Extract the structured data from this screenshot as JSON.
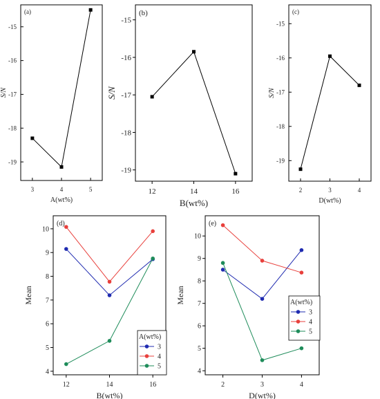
{
  "chart_data": [
    {
      "id": "a",
      "panel_label": "(a)",
      "type": "line",
      "xlabel": "A(wt%)",
      "ylabel": "S/N",
      "x": [
        3,
        4,
        5
      ],
      "series": [
        {
          "values": [
            -18.3,
            -19.15,
            -14.5
          ],
          "color": "#000000",
          "marker": "square"
        }
      ],
      "xlim": [
        2.6,
        5.4
      ],
      "ylim": [
        -19.55,
        -14.35
      ],
      "xticks": [
        3,
        4,
        5
      ],
      "yticks": [
        -19,
        -18,
        -17,
        -16,
        -15
      ],
      "xtick_labels": [
        "3",
        "4",
        "5"
      ],
      "ytick_labels": [
        "-19",
        "-18",
        "-17",
        "-16",
        "-15"
      ],
      "grid": false,
      "legend": null
    },
    {
      "id": "b",
      "panel_label": "(b)",
      "type": "line",
      "xlabel": "B(wt%)",
      "ylabel": "S/N",
      "x": [
        12,
        14,
        16
      ],
      "series": [
        {
          "values": [
            -17.05,
            -15.85,
            -19.1
          ],
          "color": "#000000",
          "marker": "square"
        }
      ],
      "xlim": [
        11.2,
        16.8
      ],
      "ylim": [
        -19.3,
        -14.6
      ],
      "xticks": [
        12,
        14,
        16
      ],
      "yticks": [
        -19,
        -18,
        -17,
        -16,
        -15
      ],
      "xtick_labels": [
        "12",
        "14",
        "16"
      ],
      "ytick_labels": [
        "-19",
        "-18",
        "-17",
        "-16",
        "-15"
      ],
      "grid": false,
      "legend": null
    },
    {
      "id": "c",
      "panel_label": "(c)",
      "type": "line",
      "xlabel": "D(wt%)",
      "ylabel": "S/N",
      "x": [
        2,
        3,
        4
      ],
      "series": [
        {
          "values": [
            -19.25,
            -15.95,
            -16.8
          ],
          "color": "#000000",
          "marker": "square"
        }
      ],
      "xlim": [
        1.6,
        4.4
      ],
      "ylim": [
        -19.6,
        -14.45
      ],
      "xticks": [
        2,
        3,
        4
      ],
      "yticks": [
        -19,
        -18,
        -17,
        -16,
        -15
      ],
      "xtick_labels": [
        "2",
        "3",
        "4"
      ],
      "ytick_labels": [
        "-19",
        "-18",
        "-17",
        "-16",
        "-15"
      ],
      "grid": false,
      "legend": null
    },
    {
      "id": "d",
      "panel_label": "(d)",
      "type": "line",
      "xlabel": "B(wt%)",
      "ylabel": "Mean",
      "x": [
        12,
        14,
        16
      ],
      "series": [
        {
          "name": "3",
          "values": [
            9.15,
            7.2,
            8.72
          ],
          "color": "#1f2bb0",
          "marker": "circle"
        },
        {
          "name": "4",
          "values": [
            10.08,
            7.77,
            9.9
          ],
          "color": "#e8403c",
          "marker": "circle"
        },
        {
          "name": "5",
          "values": [
            4.3,
            5.28,
            8.75
          ],
          "color": "#1e8c5a",
          "marker": "circle"
        }
      ],
      "xlim": [
        11.4,
        16.6
      ],
      "ylim": [
        3.85,
        10.55
      ],
      "xticks": [
        12,
        14,
        16
      ],
      "yticks": [
        4,
        5,
        6,
        7,
        8,
        9,
        10
      ],
      "xtick_labels": [
        "12",
        "14",
        "16"
      ],
      "ytick_labels": [
        "4",
        "5",
        "6",
        "7",
        "8",
        "9",
        "10"
      ],
      "grid": false,
      "legend": {
        "title": "A(wt%)",
        "placement": "bottom-right"
      }
    },
    {
      "id": "e",
      "panel_label": "(e)",
      "type": "line",
      "xlabel": "D(wt%)",
      "ylabel": "Mean",
      "x": [
        2,
        3,
        4
      ],
      "series": [
        {
          "name": "3",
          "values": [
            8.5,
            7.2,
            9.37
          ],
          "color": "#1f2bb0",
          "marker": "circle"
        },
        {
          "name": "4",
          "values": [
            10.48,
            8.9,
            8.37
          ],
          "color": "#e8403c",
          "marker": "circle"
        },
        {
          "name": "5",
          "values": [
            8.8,
            4.47,
            5.0
          ],
          "color": "#1e8c5a",
          "marker": "circle"
        }
      ],
      "xlim": [
        1.55,
        4.45
      ],
      "ylim": [
        3.82,
        10.9
      ],
      "xticks": [
        2,
        3,
        4
      ],
      "yticks": [
        4,
        5,
        6,
        7,
        8,
        9,
        10
      ],
      "xtick_labels": [
        "2",
        "3",
        "4"
      ],
      "ytick_labels": [
        "4",
        "5",
        "6",
        "7",
        "8",
        "9",
        "10"
      ],
      "grid": false,
      "legend": {
        "title": "A(wt%)",
        "placement": "middle-right"
      }
    }
  ]
}
